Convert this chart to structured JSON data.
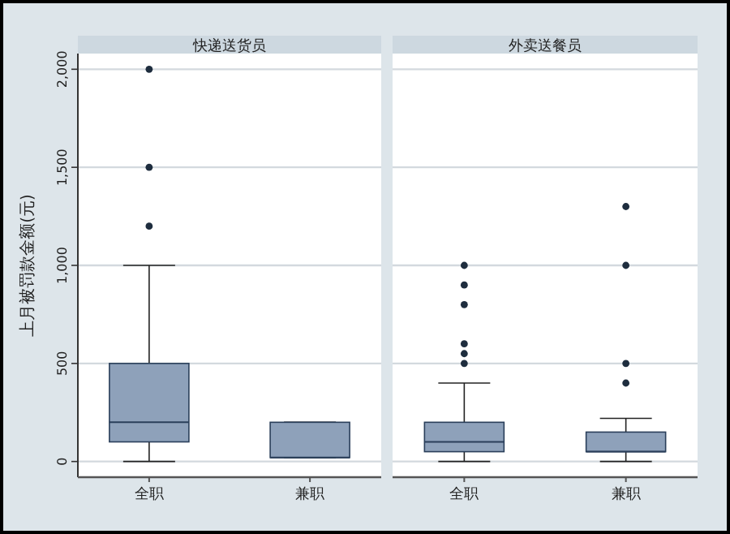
{
  "chart_data": [
    {
      "type": "box",
      "title": "快递送货员",
      "ylabel": "上月被罚款金额(元)",
      "categories": [
        "全职",
        "兼职"
      ],
      "ylim": [
        -80,
        2080
      ],
      "yticks": [
        0,
        500,
        {
          "value": 1000,
          "label": "1,000"
        },
        {
          "value": 1500,
          "label": "1,500"
        },
        {
          "value": 2000,
          "label": "2,000"
        }
      ],
      "grid": "y",
      "series": [
        {
          "color": "#8ea1ba",
          "boxes": [
            {
              "low": 0,
              "q1": 100,
              "median": 200,
              "q3": 500,
              "high": 1000,
              "outliers": [
                1200,
                1500,
                2000
              ]
            },
            {
              "low": 20,
              "q1": 20,
              "median": 20,
              "q3": 200,
              "high": 200
            }
          ]
        }
      ]
    },
    {
      "type": "box",
      "title": "外卖送餐员",
      "categories": [
        "全职",
        "兼职"
      ],
      "ylim": [
        -80,
        2080
      ],
      "yticks": [
        {
          "value": 0,
          "label": null
        },
        {
          "value": 500,
          "label": null
        },
        {
          "value": 1000,
          "label": null
        },
        {
          "value": 1500,
          "label": null
        },
        {
          "value": 2000,
          "label": null
        }
      ],
      "grid": "y",
      "tick_labels": "x",
      "series": [
        {
          "color": "#8ea1ba",
          "boxes": [
            {
              "low": 0,
              "q1": 50,
              "median": 100,
              "q3": 200,
              "high": 400,
              "outliers": [
                500,
                550,
                600,
                800,
                900,
                1000
              ]
            },
            {
              "low": 0,
              "q1": 50,
              "median": 50,
              "q3": 150,
              "high": 220,
              "outliers": [
                400,
                500,
                1000,
                1300
              ]
            }
          ]
        }
      ]
    }
  ]
}
